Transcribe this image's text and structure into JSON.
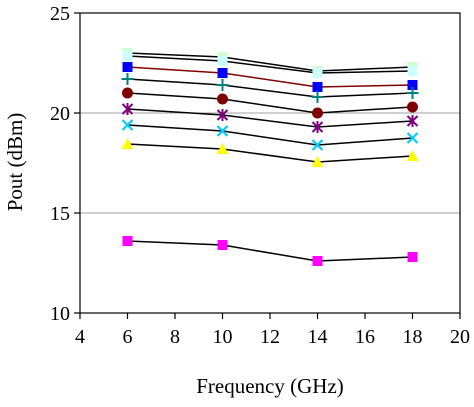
{
  "chart_data": {
    "type": "line",
    "xlabel": "Frequency (GHz)",
    "ylabel": "Pout (dBm)",
    "xlim": [
      4,
      20
    ],
    "ylim": [
      10,
      25
    ],
    "x_ticks": [
      "4",
      "6",
      "8",
      "10",
      "12",
      "14",
      "16",
      "18",
      "20"
    ],
    "y_ticks": [
      "10",
      "15",
      "20",
      "25"
    ],
    "grid": "horizontal",
    "legend": "none",
    "x": [
      6,
      10,
      14,
      18
    ],
    "series": [
      {
        "values": [
          23.0,
          22.8,
          22.1,
          22.3
        ],
        "marker": "square",
        "color": "#ccffcc",
        "line_color": "#000000"
      },
      {
        "values": [
          22.85,
          22.6,
          22.0,
          22.1
        ],
        "marker": "square",
        "color": "#ccffff",
        "line_color": "#000000"
      },
      {
        "values": [
          22.3,
          22.0,
          21.3,
          21.4
        ],
        "marker": "square",
        "color": "#0000ff",
        "line_color": "#800000"
      },
      {
        "values": [
          21.7,
          21.4,
          20.8,
          21.0
        ],
        "marker": "plus",
        "color": "#008080",
        "line_color": "#000000"
      },
      {
        "values": [
          21.0,
          20.7,
          20.0,
          20.3
        ],
        "marker": "circle",
        "color": "#800000",
        "line_color": "#000000"
      },
      {
        "values": [
          20.2,
          19.9,
          19.3,
          19.6
        ],
        "marker": "asterisk",
        "color": "#800080",
        "line_color": "#000000"
      },
      {
        "values": [
          19.4,
          19.1,
          18.4,
          18.75
        ],
        "marker": "x",
        "color": "#00ccff",
        "line_color": "#000000"
      },
      {
        "values": [
          18.45,
          18.2,
          17.55,
          17.85
        ],
        "marker": "triangle",
        "color": "#ffff00",
        "line_color": "#000000"
      },
      {
        "values": [
          13.6,
          13.4,
          12.6,
          12.8
        ],
        "marker": "square",
        "color": "#ff00ff",
        "line_color": "#000000"
      }
    ]
  }
}
